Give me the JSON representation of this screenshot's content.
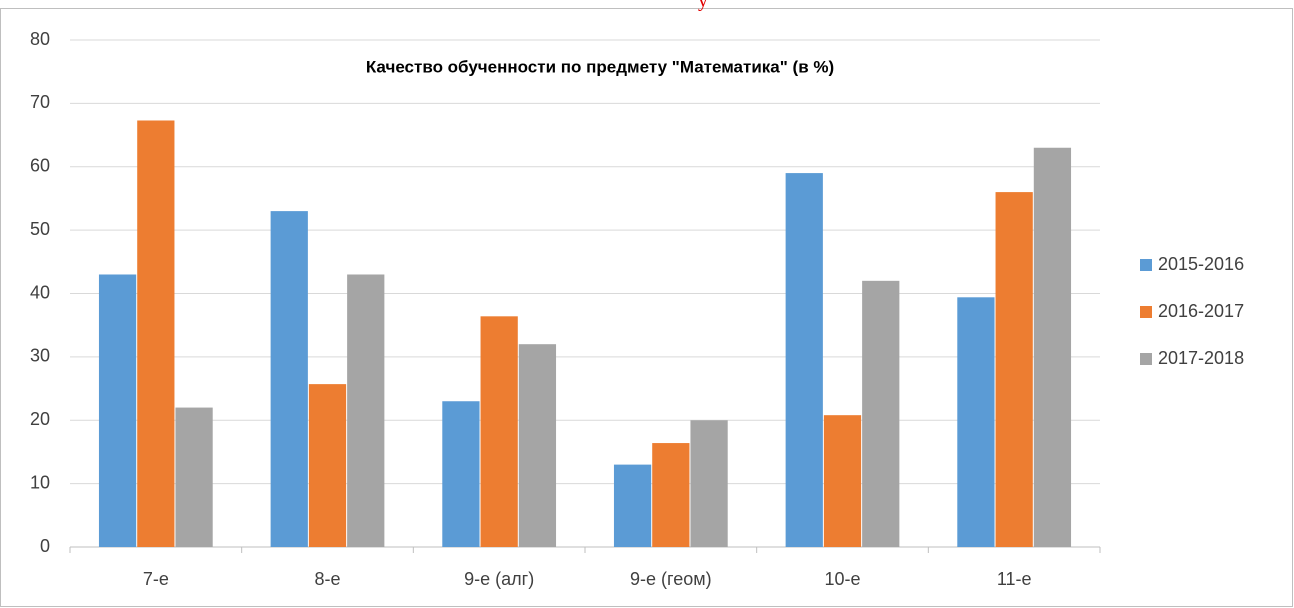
{
  "chart_data": {
    "type": "bar",
    "title": "Качество обученности по предмету \"Математика\" (в %)",
    "annotation": "у",
    "categories": [
      "7-е",
      "8-е",
      "9-е (алг)",
      "9-е (геом)",
      "10-е",
      "11-е"
    ],
    "series": [
      {
        "name": "2015-2016",
        "color": "#5b9bd5",
        "values": [
          43,
          53,
          23,
          13,
          59,
          39.4
        ]
      },
      {
        "name": "2016-2017",
        "color": "#ed7d31",
        "values": [
          67.3,
          25.7,
          36.4,
          16.4,
          20.8,
          56
        ]
      },
      {
        "name": "2017-2018",
        "color": "#a5a5a5",
        "values": [
          22,
          43,
          32,
          20,
          42,
          63
        ]
      }
    ],
    "ylim": [
      0,
      80
    ],
    "yticks": [
      0,
      10,
      20,
      30,
      40,
      50,
      60,
      70,
      80
    ],
    "grid": true,
    "legend": "right"
  }
}
